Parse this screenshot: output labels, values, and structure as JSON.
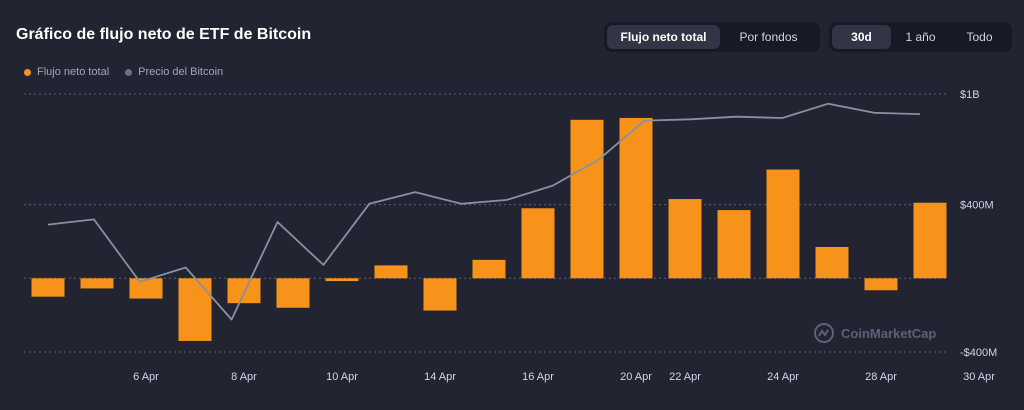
{
  "header": {
    "title": "Gráfico de flujo neto de ETF de Bitcoin",
    "type_toggle": [
      "Flujo neto total",
      "Por fondos"
    ],
    "range_toggle": [
      "30d",
      "1 año",
      "Todo"
    ],
    "active_type": "Flujo neto total",
    "active_range": "30d"
  },
  "legend": [
    {
      "label": "Flujo neto total",
      "color": "#f7931a"
    },
    {
      "label": "Precio del Bitcoin",
      "color": "#6b7085"
    }
  ],
  "watermark": "CoinMarketCap",
  "colors": {
    "bar": "#f7931a",
    "line": "#8a8fa3",
    "grid": "#5b6177",
    "background": "#222531"
  },
  "chart_data": {
    "type": "bar",
    "title": "Gráfico de flujo neto de ETF de Bitcoin",
    "y_ticks": [
      {
        "value": 1000,
        "label": "$1B"
      },
      {
        "value": 400,
        "label": "$400M"
      },
      {
        "value": 0,
        "label": ""
      },
      {
        "value": -400,
        "label": "-$400M"
      }
    ],
    "ylim": [
      -400,
      1000
    ],
    "x_ticks": [
      {
        "index": 2,
        "label": "6 Apr"
      },
      {
        "index": 4,
        "label": "8 Apr"
      },
      {
        "index": 6,
        "label": "10 Apr"
      },
      {
        "index": 8,
        "label": "14 Apr"
      },
      {
        "index": 10,
        "label": "16 Apr"
      },
      {
        "index": 12,
        "label": "20 Apr"
      },
      {
        "index": 13,
        "label": "22 Apr"
      },
      {
        "index": 15,
        "label": "24 Apr"
      },
      {
        "index": 17,
        "label": "28 Apr"
      },
      {
        "index": 19,
        "label": "30 Apr"
      }
    ],
    "series": [
      {
        "name": "Flujo neto total",
        "type": "bar",
        "values": [
          -100,
          -55,
          -110,
          -340,
          -135,
          -160,
          -15,
          70,
          -175,
          100,
          380,
          860,
          870,
          430,
          370,
          590,
          170,
          -65,
          410
        ]
      },
      {
        "name": "Precio del Bitcoin",
        "type": "line",
        "unit": "relative (0-100)",
        "values": [
          48,
          52,
          4,
          15,
          -25,
          50,
          17,
          64,
          73,
          64,
          67,
          78,
          98,
          128,
          129,
          131,
          130,
          141,
          134,
          133
        ]
      }
    ]
  }
}
